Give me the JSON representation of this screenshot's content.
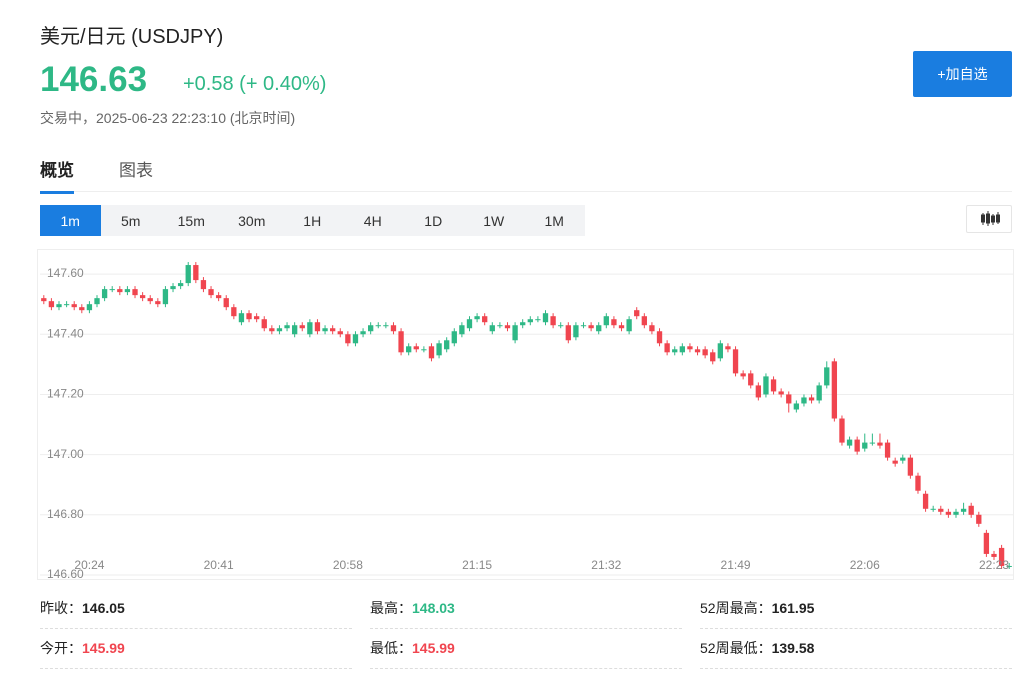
{
  "header": {
    "title": "美元/日元 (USDJPY)",
    "price": "146.63",
    "change": "+0.58 (+ 0.40%)",
    "status": "交易中，2025-06-23 22:23:10 (北京时间)",
    "button": "+加自选"
  },
  "tabs": [
    "概览",
    "图表"
  ],
  "periods": [
    "1m",
    "5m",
    "15m",
    "30m",
    "1H",
    "4H",
    "1D",
    "1W",
    "1M"
  ],
  "stats": [
    [
      {
        "label": "昨收：",
        "value": "146.05",
        "color": "#222222"
      },
      {
        "label": "最高：",
        "value": "148.03",
        "color": "#2eb886"
      },
      {
        "label": "52周最高：",
        "value": "161.95",
        "color": "#222222"
      }
    ],
    [
      {
        "label": "今开：",
        "value": "145.99",
        "color": "#f0454f"
      },
      {
        "label": "最低：",
        "value": "145.99",
        "color": "#f0454f"
      },
      {
        "label": "52周最低：",
        "value": "139.58",
        "color": "#222222"
      }
    ]
  ],
  "chart_data": {
    "type": "candlestick",
    "up_color": "#2eb886",
    "down_color": "#f0454f",
    "grid": true,
    "ylim": [
      146.59,
      147.68
    ],
    "yticks": [
      {
        "value": 146.6,
        "label": "146.60"
      },
      {
        "value": 146.8,
        "label": "146.80"
      },
      {
        "value": 147.0,
        "label": "147.00"
      },
      {
        "value": 147.2,
        "label": "147.20"
      },
      {
        "value": 147.4,
        "label": "147.40"
      },
      {
        "value": 147.6,
        "label": "147.60"
      }
    ],
    "categories": [
      null,
      null,
      null,
      null,
      null,
      null,
      "20:24",
      null,
      null,
      null,
      null,
      null,
      null,
      null,
      null,
      null,
      null,
      null,
      null,
      null,
      null,
      null,
      null,
      "20:41",
      null,
      null,
      null,
      null,
      null,
      null,
      null,
      null,
      null,
      null,
      null,
      null,
      null,
      null,
      null,
      null,
      "20:58",
      null,
      null,
      null,
      null,
      null,
      null,
      null,
      null,
      null,
      null,
      null,
      null,
      null,
      null,
      null,
      null,
      "21:15",
      null,
      null,
      null,
      null,
      null,
      null,
      null,
      null,
      null,
      null,
      null,
      null,
      null,
      null,
      null,
      null,
      "21:32",
      null,
      null,
      null,
      null,
      null,
      null,
      null,
      null,
      null,
      null,
      null,
      null,
      null,
      null,
      null,
      null,
      "21:49",
      null,
      null,
      null,
      null,
      null,
      null,
      null,
      null,
      null,
      null,
      null,
      null,
      null,
      null,
      null,
      null,
      "22:06",
      null,
      null,
      null,
      null,
      null,
      null,
      null,
      null,
      null,
      null,
      null,
      null,
      null,
      null,
      null,
      null,
      "22:23",
      null,
      null
    ],
    "open": [
      147.52,
      147.51,
      147.49,
      147.5,
      147.5,
      147.49,
      147.48,
      147.5,
      147.52,
      147.55,
      147.55,
      147.54,
      147.55,
      147.53,
      147.52,
      147.51,
      147.5,
      147.55,
      147.56,
      147.57,
      147.63,
      147.58,
      147.55,
      147.53,
      147.52,
      147.49,
      147.44,
      147.47,
      147.46,
      147.45,
      147.42,
      147.41,
      147.42,
      147.4,
      147.43,
      147.4,
      147.44,
      147.41,
      147.42,
      147.41,
      147.4,
      147.37,
      147.4,
      147.41,
      147.43,
      147.43,
      147.43,
      147.41,
      147.34,
      147.36,
      147.35,
      147.36,
      147.33,
      147.35,
      147.37,
      147.4,
      147.42,
      147.45,
      147.46,
      147.41,
      147.43,
      147.43,
      147.38,
      147.43,
      147.44,
      147.45,
      147.44,
      147.46,
      147.43,
      147.43,
      147.39,
      147.43,
      147.43,
      147.41,
      147.43,
      147.45,
      147.43,
      147.41,
      147.48,
      147.46,
      147.43,
      147.41,
      147.37,
      147.34,
      147.34,
      147.36,
      147.35,
      147.35,
      147.34,
      147.32,
      147.36,
      147.35,
      147.27,
      147.27,
      147.23,
      147.2,
      147.25,
      147.21,
      147.2,
      147.15,
      147.17,
      147.19,
      147.18,
      147.23,
      147.31,
      147.12,
      147.03,
      147.05,
      147.02,
      147.04,
      147.04,
      147.04,
      146.98,
      146.98,
      146.99,
      146.93,
      146.87,
      146.82,
      146.82,
      146.81,
      146.8,
      146.81,
      146.83,
      146.8,
      146.74,
      146.67,
      146.69,
      146.63
    ],
    "high": [
      147.53,
      147.52,
      147.51,
      147.51,
      147.51,
      147.5,
      147.51,
      147.53,
      147.56,
      147.56,
      147.56,
      147.56,
      147.56,
      147.54,
      147.53,
      147.52,
      147.56,
      147.57,
      147.58,
      147.64,
      147.64,
      147.59,
      147.56,
      147.54,
      147.53,
      147.5,
      147.48,
      147.48,
      147.47,
      147.46,
      147.43,
      147.43,
      147.44,
      147.44,
      147.44,
      147.45,
      147.45,
      147.43,
      147.43,
      147.42,
      147.41,
      147.41,
      147.42,
      147.44,
      147.44,
      147.44,
      147.44,
      147.42,
      147.37,
      147.37,
      147.36,
      147.37,
      147.38,
      147.39,
      147.42,
      147.44,
      147.46,
      147.47,
      147.47,
      147.44,
      147.44,
      147.44,
      147.44,
      147.45,
      147.46,
      147.46,
      147.48,
      147.47,
      147.44,
      147.44,
      147.44,
      147.44,
      147.44,
      147.44,
      147.47,
      147.46,
      147.44,
      147.46,
      147.49,
      147.47,
      147.44,
      147.42,
      147.38,
      147.36,
      147.37,
      147.37,
      147.36,
      147.36,
      147.35,
      147.38,
      147.37,
      147.36,
      147.28,
      147.28,
      147.24,
      147.27,
      147.26,
      147.22,
      147.21,
      147.18,
      147.2,
      147.2,
      147.24,
      147.31,
      147.32,
      147.13,
      147.06,
      147.06,
      147.07,
      147.07,
      147.07,
      147.05,
      146.99,
      147.0,
      147.0,
      146.94,
      146.88,
      146.83,
      146.83,
      146.82,
      146.82,
      146.84,
      146.84,
      146.81,
      146.75,
      146.68,
      146.7,
      146.64
    ],
    "low": [
      147.5,
      147.48,
      147.48,
      147.49,
      147.48,
      147.47,
      147.47,
      147.49,
      147.51,
      147.54,
      147.53,
      147.53,
      147.52,
      147.51,
      147.5,
      147.49,
      147.49,
      147.54,
      147.55,
      147.56,
      147.57,
      147.54,
      147.52,
      147.51,
      147.48,
      147.45,
      147.43,
      147.44,
      147.44,
      147.41,
      147.4,
      147.4,
      147.41,
      147.39,
      147.41,
      147.39,
      147.4,
      147.4,
      147.4,
      147.39,
      147.36,
      147.36,
      147.39,
      147.4,
      147.42,
      147.42,
      147.4,
      147.33,
      147.33,
      147.34,
      147.34,
      147.31,
      147.32,
      147.34,
      147.36,
      147.39,
      147.41,
      147.44,
      147.43,
      147.4,
      147.42,
      147.41,
      147.37,
      147.42,
      147.43,
      147.44,
      147.43,
      147.42,
      147.42,
      147.37,
      147.38,
      147.42,
      147.41,
      147.4,
      147.42,
      147.42,
      147.41,
      147.4,
      147.45,
      147.42,
      147.4,
      147.36,
      147.33,
      147.33,
      147.33,
      147.34,
      147.33,
      147.32,
      147.3,
      147.31,
      147.34,
      147.26,
      147.25,
      147.22,
      147.18,
      147.19,
      147.2,
      147.19,
      147.14,
      147.14,
      147.16,
      147.17,
      147.17,
      147.22,
      147.11,
      147.03,
      147.02,
      147.0,
      147.01,
      147.03,
      147.02,
      146.98,
      146.96,
      146.97,
      146.92,
      146.87,
      146.81,
      146.81,
      146.8,
      146.79,
      146.79,
      146.8,
      146.79,
      146.76,
      146.66,
      146.65,
      146.62,
      146.62
    ],
    "close": [
      147.51,
      147.49,
      147.5,
      147.5,
      147.49,
      147.48,
      147.5,
      147.52,
      147.55,
      147.55,
      147.54,
      147.55,
      147.53,
      147.52,
      147.51,
      147.5,
      147.55,
      147.56,
      147.57,
      147.63,
      147.58,
      147.55,
      147.53,
      147.52,
      147.49,
      147.46,
      147.47,
      147.45,
      147.45,
      147.42,
      147.41,
      147.42,
      147.43,
      147.43,
      147.42,
      147.44,
      147.41,
      147.42,
      147.41,
      147.4,
      147.37,
      147.4,
      147.41,
      147.43,
      147.43,
      147.43,
      147.41,
      147.34,
      147.36,
      147.35,
      147.35,
      147.32,
      147.37,
      147.38,
      147.41,
      147.43,
      147.45,
      147.46,
      147.44,
      147.43,
      147.43,
      147.42,
      147.43,
      147.44,
      147.45,
      147.45,
      147.47,
      147.43,
      147.43,
      147.38,
      147.43,
      147.43,
      147.42,
      147.43,
      147.46,
      147.43,
      147.42,
      147.45,
      147.46,
      147.43,
      147.41,
      147.37,
      147.34,
      147.35,
      147.36,
      147.35,
      147.34,
      147.33,
      147.31,
      147.37,
      147.35,
      147.27,
      147.26,
      147.23,
      147.19,
      147.26,
      147.21,
      147.2,
      147.17,
      147.17,
      147.19,
      147.18,
      147.23,
      147.29,
      147.12,
      147.04,
      147.05,
      147.01,
      147.04,
      147.04,
      147.03,
      146.99,
      146.97,
      146.99,
      146.93,
      146.88,
      146.82,
      146.82,
      146.81,
      146.8,
      146.81,
      146.82,
      146.8,
      146.77,
      146.67,
      146.66,
      146.63,
      146.63
    ]
  }
}
